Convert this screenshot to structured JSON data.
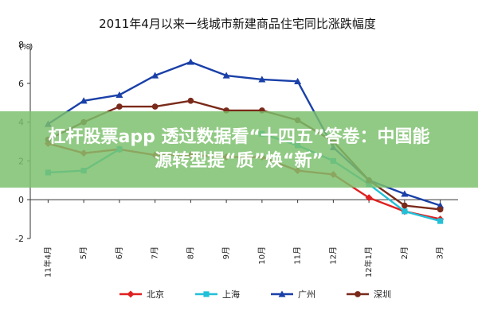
{
  "chart_data": {
    "type": "line",
    "title": "2011年4月以来一线城市新建商品住宅同比涨跌幅度",
    "ylabel": "(%)",
    "xlabel": "",
    "ylim": [
      -2,
      8
    ],
    "yticks": [
      -2,
      0,
      2,
      4,
      6,
      8
    ],
    "grid": false,
    "legend": "bottom",
    "categories": [
      "11年4月",
      "5月",
      "6月",
      "7月",
      "8月",
      "9月",
      "10月",
      "11月",
      "12月",
      "12年1月",
      "2月",
      "3月"
    ],
    "series": [
      {
        "name": "北京",
        "color": "#e02020",
        "marker": "diamond",
        "values": [
          2.9,
          2.4,
          2.6,
          2.3,
          2.3,
          2.2,
          2.2,
          1.5,
          1.3,
          0.1,
          -0.6,
          -1.0
        ]
      },
      {
        "name": "上海",
        "color": "#22c0d8",
        "marker": "square",
        "values": [
          1.4,
          1.5,
          2.6,
          null,
          null,
          null,
          3.4,
          2.8,
          2.0,
          0.8,
          -0.6,
          -1.1
        ]
      },
      {
        "name": "广州",
        "color": "#1a40a8",
        "marker": "triangle",
        "values": [
          3.9,
          5.1,
          5.4,
          6.4,
          7.1,
          6.4,
          6.2,
          6.1,
          2.7,
          1.0,
          0.3,
          -0.3
        ]
      },
      {
        "name": "深圳",
        "color": "#7a2a1a",
        "marker": "circle",
        "values": [
          3.1,
          4.0,
          4.8,
          4.8,
          5.1,
          4.6,
          4.6,
          4.1,
          3.0,
          1.0,
          -0.3,
          -0.5
        ]
      }
    ]
  },
  "banner": {
    "line1": "杠杆股票app 透过数据看“十四五”答卷：中国能",
    "line2": "源转型提“质”焕“新”"
  }
}
